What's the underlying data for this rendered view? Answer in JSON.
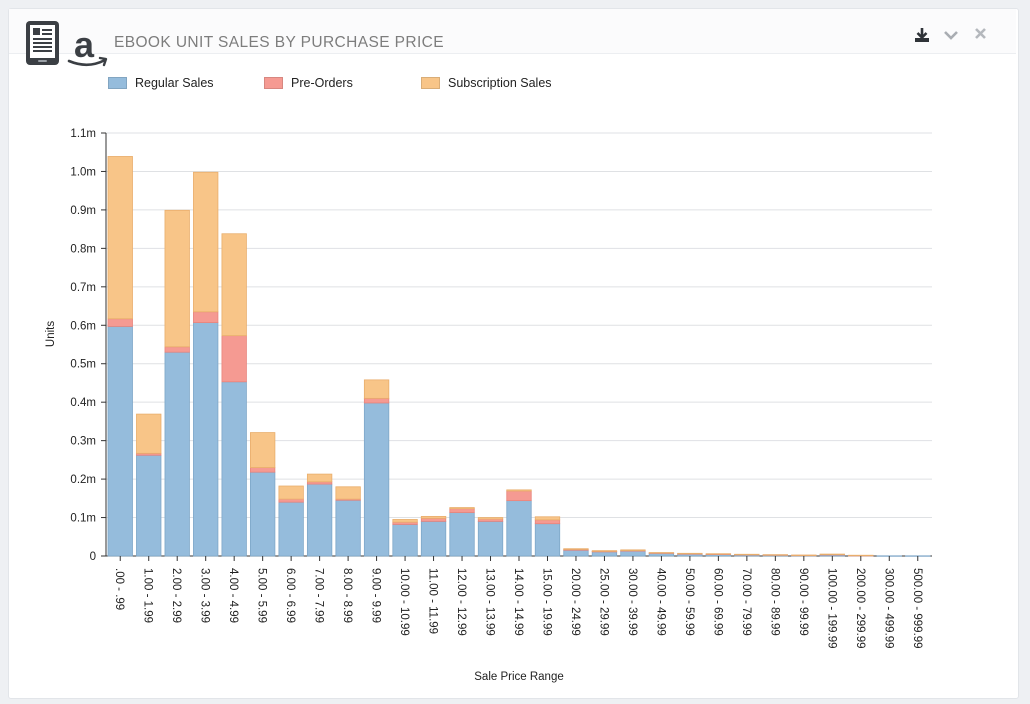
{
  "header": {
    "title": "EBOOK UNIT SALES BY PURCHASE PRICE",
    "ereader_icon": "ereader-icon",
    "amazon_icon": "amazon-logo-icon",
    "tools": [
      "download-icon",
      "chevron-down-icon",
      "close-icon"
    ]
  },
  "colors": {
    "regular": "#95bcdc",
    "preorder": "#f59a92",
    "subscription": "#f8c588"
  },
  "chart_data": {
    "type": "bar",
    "stacked": true,
    "title": "EBOOK UNIT SALES BY PURCHASE PRICE",
    "xlabel": "Sale Price Range",
    "ylabel": "Units",
    "ylim": [
      0,
      1100000
    ],
    "yticks": [
      {
        "value": 0,
        "label": "0"
      },
      {
        "value": 100000,
        "label": "0.1m"
      },
      {
        "value": 200000,
        "label": "0.2m"
      },
      {
        "value": 300000,
        "label": "0.3m"
      },
      {
        "value": 400000,
        "label": "0.4m"
      },
      {
        "value": 500000,
        "label": "0.5m"
      },
      {
        "value": 600000,
        "label": "0.6m"
      },
      {
        "value": 700000,
        "label": "0.7m"
      },
      {
        "value": 800000,
        "label": "0.8m"
      },
      {
        "value": 900000,
        "label": "0.9m"
      },
      {
        "value": 1000000,
        "label": "1.0m"
      },
      {
        "value": 1100000,
        "label": "1.1m"
      }
    ],
    "grid": true,
    "legend": "top-left",
    "categories": [
      ".00 - .99",
      "1.00 - 1.99",
      "2.00 - 2.99",
      "3.00 - 3.99",
      "4.00 - 4.99",
      "5.00 - 5.99",
      "6.00 - 6.99",
      "7.00 - 7.99",
      "8.00 - 8.99",
      "9.00 - 9.99",
      "10.00 - 10.99",
      "11.00 - 11.99",
      "12.00 - 12.99",
      "13.00 - 13.99",
      "14.00 - 14.99",
      "15.00 - 19.99",
      "20.00 - 24.99",
      "25.00 - 29.99",
      "30.00 - 39.99",
      "40.00 - 49.99",
      "50.00 - 59.99",
      "60.00 - 69.99",
      "70.00 - 79.99",
      "80.00 - 89.99",
      "90.00 - 99.99",
      "100.00 - 199.99",
      "200.00 - 299.99",
      "300.00 - 499.99",
      "500.00 - 999.99"
    ],
    "series": [
      {
        "name": "Regular Sales",
        "color": "#95bcdc",
        "values": [
          597000,
          262000,
          530000,
          607000,
          453000,
          218000,
          140000,
          187000,
          145000,
          398000,
          82000,
          90000,
          113000,
          90000,
          144000,
          84000,
          15000,
          11000,
          13000,
          7000,
          5000,
          4000,
          3000,
          2000,
          1500,
          3000,
          1000,
          500,
          500
        ]
      },
      {
        "name": "Pre-Orders",
        "color": "#f59a92",
        "values": [
          20000,
          5000,
          14000,
          28000,
          120000,
          12000,
          8000,
          6000,
          3000,
          12000,
          6000,
          8000,
          10000,
          6000,
          25000,
          10000,
          2000,
          1000,
          1000,
          1000,
          1000,
          1000,
          1000,
          1000,
          500,
          1000,
          500,
          0,
          0
        ]
      },
      {
        "name": "Subscription Sales",
        "color": "#f8c588",
        "values": [
          422000,
          102000,
          355000,
          363000,
          265000,
          91000,
          34000,
          20000,
          32000,
          48000,
          7000,
          5000,
          3000,
          4000,
          3000,
          8000,
          2000,
          2000,
          2000,
          1000,
          1000,
          1000,
          500,
          500,
          500,
          1000,
          500,
          0,
          0
        ]
      }
    ]
  }
}
